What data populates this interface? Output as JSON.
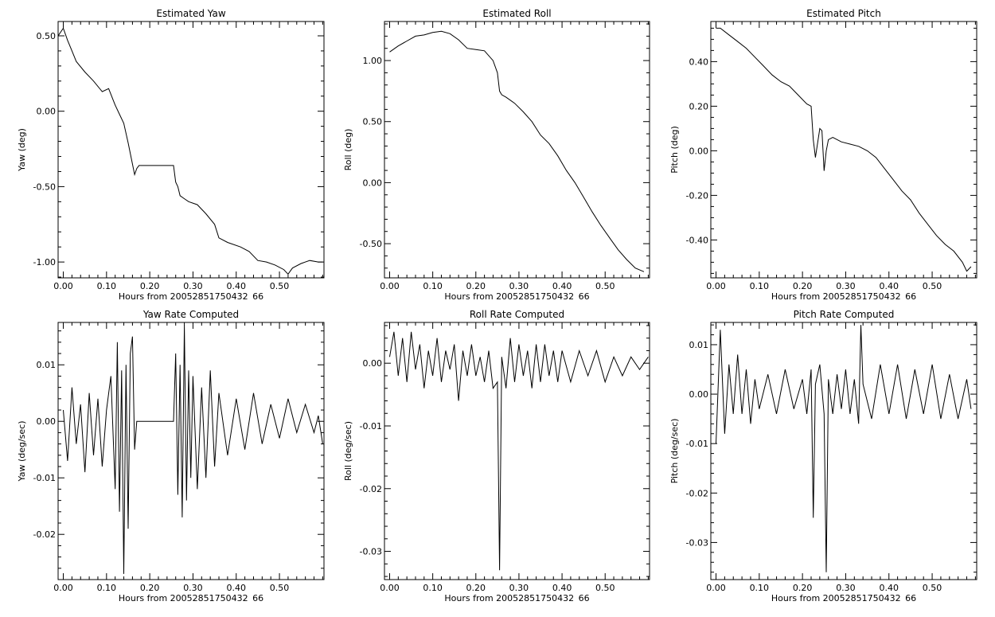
{
  "chart_data": [
    {
      "type": "line",
      "title": "Estimated Yaw",
      "xlabel": "Hours from 20052851750432 66",
      "ylabel": "Yaw (deg)",
      "xlim": [
        -0.012,
        0.603
      ],
      "ylim": [
        -1.105,
        0.595
      ],
      "xticks": [
        0.0,
        0.1,
        0.2,
        0.3,
        0.4,
        0.5
      ],
      "xtick_labels": [
        "0.00",
        "0.10",
        "0.20",
        "0.30",
        "0.40",
        "0.50"
      ],
      "yticks": [
        0.5,
        0.0,
        -0.5,
        -1.0
      ],
      "ytick_labels": [
        "0.50",
        "0.00",
        "-0.50",
        "-1.00"
      ],
      "series": [
        {
          "x": [
            -0.012,
            0.0,
            0.01,
            0.02,
            0.03,
            0.05,
            0.07,
            0.09,
            0.105,
            0.12,
            0.13,
            0.14,
            0.15,
            0.16,
            0.165,
            0.17,
            0.175,
            0.19,
            0.21,
            0.24,
            0.255,
            0.26,
            0.265,
            0.27,
            0.28,
            0.29,
            0.31,
            0.33,
            0.35,
            0.36,
            0.38,
            0.41,
            0.43,
            0.45,
            0.47,
            0.49,
            0.51,
            0.52,
            0.53,
            0.55,
            0.57,
            0.59,
            0.6
          ],
          "y": [
            0.5,
            0.55,
            0.47,
            0.4,
            0.33,
            0.26,
            0.2,
            0.13,
            0.15,
            0.04,
            -0.02,
            -0.08,
            -0.21,
            -0.35,
            -0.42,
            -0.38,
            -0.36,
            -0.36,
            -0.36,
            -0.36,
            -0.36,
            -0.47,
            -0.5,
            -0.56,
            -0.58,
            -0.6,
            -0.62,
            -0.68,
            -0.75,
            -0.84,
            -0.87,
            -0.9,
            -0.93,
            -0.99,
            -1.0,
            -1.02,
            -1.05,
            -1.08,
            -1.04,
            -1.01,
            -0.99,
            -1.0,
            -1.0
          ]
        }
      ]
    },
    {
      "type": "line",
      "title": "Estimated Roll",
      "xlabel": "Hours from 20052851750432 66",
      "ylabel": "Roll (deg)",
      "xlim": [
        -0.012,
        0.603
      ],
      "ylim": [
        -0.78,
        1.32
      ],
      "xticks": [
        0.0,
        0.1,
        0.2,
        0.3,
        0.4,
        0.5
      ],
      "xtick_labels": [
        "0.00",
        "0.10",
        "0.20",
        "0.30",
        "0.40",
        "0.50"
      ],
      "yticks": [
        1.0,
        0.5,
        0.0,
        -0.5
      ],
      "ytick_labels": [
        "1.00",
        "0.50",
        "0.00",
        "-0.50"
      ],
      "series": [
        {
          "x": [
            0.0,
            0.02,
            0.04,
            0.06,
            0.08,
            0.1,
            0.12,
            0.14,
            0.16,
            0.18,
            0.2,
            0.22,
            0.24,
            0.25,
            0.255,
            0.26,
            0.27,
            0.29,
            0.31,
            0.33,
            0.35,
            0.37,
            0.39,
            0.41,
            0.43,
            0.45,
            0.47,
            0.49,
            0.51,
            0.53,
            0.55,
            0.57,
            0.59
          ],
          "y": [
            1.07,
            1.12,
            1.16,
            1.2,
            1.21,
            1.23,
            1.24,
            1.22,
            1.17,
            1.1,
            1.09,
            1.08,
            1.0,
            0.9,
            0.75,
            0.72,
            0.7,
            0.65,
            0.58,
            0.5,
            0.39,
            0.32,
            0.22,
            0.1,
            0.0,
            -0.12,
            -0.24,
            -0.35,
            -0.45,
            -0.55,
            -0.63,
            -0.7,
            -0.73
          ]
        }
      ]
    },
    {
      "type": "line",
      "title": "Estimated Pitch",
      "xlabel": "Hours from 20052851750432 66",
      "ylabel": "Pitch (deg)",
      "xlim": [
        -0.012,
        0.603
      ],
      "ylim": [
        -0.57,
        0.58
      ],
      "xticks": [
        0.0,
        0.1,
        0.2,
        0.3,
        0.4,
        0.5
      ],
      "xtick_labels": [
        "0.00",
        "0.10",
        "0.20",
        "0.30",
        "0.40",
        "0.50"
      ],
      "yticks": [
        0.4,
        0.2,
        0.0,
        -0.2,
        -0.4
      ],
      "ytick_labels": [
        "0.40",
        "0.20",
        "0.00",
        "-0.20",
        "-0.40"
      ],
      "series": [
        {
          "x": [
            0.0,
            0.01,
            0.03,
            0.05,
            0.07,
            0.09,
            0.11,
            0.13,
            0.15,
            0.17,
            0.19,
            0.21,
            0.22,
            0.225,
            0.23,
            0.24,
            0.245,
            0.25,
            0.255,
            0.26,
            0.27,
            0.29,
            0.31,
            0.33,
            0.35,
            0.37,
            0.39,
            0.41,
            0.43,
            0.45,
            0.47,
            0.49,
            0.51,
            0.53,
            0.55,
            0.57,
            0.58,
            0.59
          ],
          "y": [
            0.55,
            0.55,
            0.52,
            0.49,
            0.46,
            0.42,
            0.38,
            0.34,
            0.31,
            0.29,
            0.25,
            0.21,
            0.2,
            0.05,
            -0.03,
            0.1,
            0.09,
            -0.09,
            0.0,
            0.05,
            0.06,
            0.04,
            0.03,
            0.02,
            0.0,
            -0.03,
            -0.08,
            -0.13,
            -0.18,
            -0.22,
            -0.28,
            -0.33,
            -0.38,
            -0.42,
            -0.45,
            -0.5,
            -0.54,
            -0.52
          ]
        }
      ]
    },
    {
      "type": "line",
      "title": "Yaw Rate Computed",
      "xlabel": "Hours from 20052851750432 66",
      "ylabel": "Yaw (deg/sec)",
      "xlim": [
        -0.012,
        0.603
      ],
      "ylim": [
        -0.028,
        0.0175
      ],
      "xticks": [
        0.0,
        0.1,
        0.2,
        0.3,
        0.4,
        0.5
      ],
      "xtick_labels": [
        "0.00",
        "0.10",
        "0.20",
        "0.30",
        "0.40",
        "0.50"
      ],
      "yticks": [
        0.01,
        0.0,
        -0.01,
        -0.02
      ],
      "ytick_labels": [
        "0.01",
        "0.00",
        "-0.01",
        "-0.02"
      ],
      "series": [
        {
          "x": [
            0.0,
            0.01,
            0.02,
            0.03,
            0.04,
            0.05,
            0.06,
            0.07,
            0.08,
            0.09,
            0.1,
            0.11,
            0.12,
            0.125,
            0.13,
            0.135,
            0.14,
            0.145,
            0.15,
            0.155,
            0.16,
            0.165,
            0.17,
            0.2,
            0.255,
            0.26,
            0.265,
            0.27,
            0.275,
            0.28,
            0.285,
            0.29,
            0.295,
            0.3,
            0.31,
            0.32,
            0.33,
            0.34,
            0.35,
            0.36,
            0.38,
            0.4,
            0.42,
            0.44,
            0.46,
            0.48,
            0.5,
            0.52,
            0.54,
            0.56,
            0.58,
            0.59,
            0.6
          ],
          "y": [
            0.002,
            -0.007,
            0.006,
            -0.004,
            0.003,
            -0.009,
            0.005,
            -0.006,
            0.004,
            -0.008,
            0.002,
            0.008,
            -0.012,
            0.014,
            -0.016,
            0.009,
            -0.027,
            0.01,
            -0.019,
            0.012,
            0.015,
            -0.005,
            0.0,
            0.0,
            0.0,
            0.012,
            -0.013,
            0.01,
            -0.017,
            0.017,
            -0.014,
            0.009,
            -0.01,
            0.008,
            -0.012,
            0.006,
            -0.01,
            0.009,
            -0.008,
            0.005,
            -0.006,
            0.004,
            -0.005,
            0.005,
            -0.004,
            0.003,
            -0.003,
            0.004,
            -0.002,
            0.003,
            -0.002,
            0.001,
            -0.004
          ]
        }
      ]
    },
    {
      "type": "line",
      "title": "Roll Rate Computed",
      "xlabel": "Hours from 20052851750432 66",
      "ylabel": "Roll (deg/sec)",
      "xlim": [
        -0.012,
        0.603
      ],
      "ylim": [
        -0.0345,
        0.0065
      ],
      "xticks": [
        0.0,
        0.1,
        0.2,
        0.3,
        0.4,
        0.5
      ],
      "xtick_labels": [
        "0.00",
        "0.10",
        "0.20",
        "0.30",
        "0.40",
        "0.50"
      ],
      "yticks": [
        0.0,
        -0.01,
        -0.02,
        -0.03
      ],
      "ytick_labels": [
        "0.00",
        "-0.01",
        "-0.02",
        "-0.03"
      ],
      "series": [
        {
          "x": [
            0.0,
            0.01,
            0.02,
            0.03,
            0.04,
            0.05,
            0.06,
            0.07,
            0.08,
            0.09,
            0.1,
            0.11,
            0.12,
            0.13,
            0.14,
            0.15,
            0.16,
            0.17,
            0.18,
            0.19,
            0.2,
            0.21,
            0.22,
            0.23,
            0.24,
            0.25,
            0.255,
            0.26,
            0.27,
            0.28,
            0.29,
            0.3,
            0.31,
            0.32,
            0.33,
            0.34,
            0.35,
            0.36,
            0.37,
            0.38,
            0.39,
            0.4,
            0.42,
            0.44,
            0.46,
            0.48,
            0.5,
            0.52,
            0.54,
            0.56,
            0.58,
            0.6
          ],
          "y": [
            0.001,
            0.005,
            -0.002,
            0.004,
            -0.003,
            0.005,
            -0.001,
            0.003,
            -0.004,
            0.002,
            -0.002,
            0.004,
            -0.003,
            0.002,
            -0.001,
            0.003,
            -0.006,
            0.002,
            -0.002,
            0.003,
            -0.002,
            0.001,
            -0.003,
            0.002,
            -0.004,
            -0.003,
            -0.033,
            0.001,
            -0.004,
            0.004,
            -0.003,
            0.003,
            -0.002,
            0.002,
            -0.004,
            0.003,
            -0.003,
            0.003,
            -0.002,
            0.002,
            -0.003,
            0.002,
            -0.003,
            0.002,
            -0.002,
            0.002,
            -0.003,
            0.001,
            -0.002,
            0.001,
            -0.001,
            0.001
          ]
        }
      ]
    },
    {
      "type": "line",
      "title": "Pitch Rate Computed",
      "xlabel": "Hours from 20052851750432 66",
      "ylabel": "Pitch (deg/sec)",
      "xlim": [
        -0.012,
        0.603
      ],
      "ylim": [
        -0.0375,
        0.0145
      ],
      "xticks": [
        0.0,
        0.1,
        0.2,
        0.3,
        0.4,
        0.5
      ],
      "xtick_labels": [
        "0.00",
        "0.10",
        "0.20",
        "0.30",
        "0.40",
        "0.50"
      ],
      "yticks": [
        0.01,
        0.0,
        -0.01,
        -0.02,
        -0.03
      ],
      "ytick_labels": [
        "0.01",
        "0.00",
        "-0.01",
        "-0.02",
        "-0.03"
      ],
      "series": [
        {
          "x": [
            0.0,
            0.01,
            0.02,
            0.03,
            0.04,
            0.05,
            0.06,
            0.07,
            0.08,
            0.09,
            0.1,
            0.12,
            0.14,
            0.16,
            0.18,
            0.2,
            0.21,
            0.22,
            0.225,
            0.23,
            0.24,
            0.25,
            0.255,
            0.26,
            0.27,
            0.28,
            0.29,
            0.3,
            0.31,
            0.32,
            0.33,
            0.335,
            0.34,
            0.36,
            0.38,
            0.4,
            0.42,
            0.44,
            0.46,
            0.48,
            0.5,
            0.52,
            0.54,
            0.56,
            0.58,
            0.59
          ],
          "y": [
            -0.01,
            0.013,
            -0.008,
            0.006,
            -0.004,
            0.008,
            -0.004,
            0.005,
            -0.006,
            0.003,
            -0.003,
            0.004,
            -0.004,
            0.005,
            -0.003,
            0.003,
            -0.004,
            0.005,
            -0.025,
            0.002,
            0.006,
            -0.004,
            -0.036,
            0.003,
            -0.004,
            0.004,
            -0.003,
            0.005,
            -0.004,
            0.003,
            -0.006,
            0.014,
            0.002,
            -0.005,
            0.006,
            -0.004,
            0.006,
            -0.005,
            0.005,
            -0.004,
            0.006,
            -0.005,
            0.004,
            -0.005,
            0.003,
            -0.003
          ]
        }
      ]
    }
  ]
}
